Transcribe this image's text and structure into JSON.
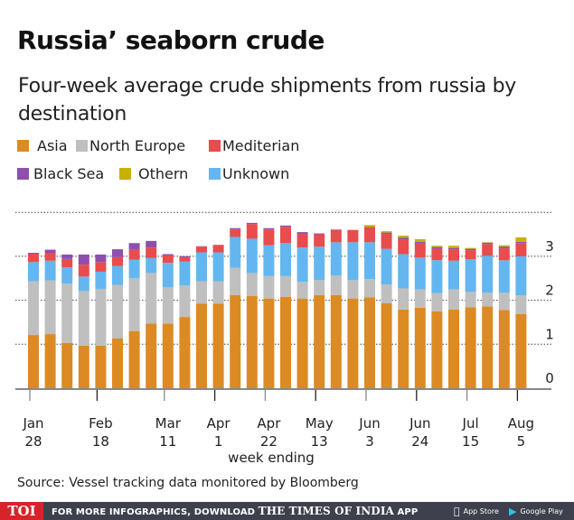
{
  "header": {
    "title": "Russia’ seaborn crude",
    "subtitle": "Four-week average crude shipments from russia by destination"
  },
  "legend": [
    {
      "label": "Asia",
      "color": "#dc8a23"
    },
    {
      "label": "North Europe",
      "color": "#bfbfbf"
    },
    {
      "label": "Mediterian",
      "color": "#e84c4c"
    },
    {
      "label": "Black Sea",
      "color": "#8e4fac"
    },
    {
      "label": "Othern",
      "color": "#c6b000"
    },
    {
      "label": "Unknown",
      "color": "#64b6f0"
    }
  ],
  "source": "Source: Vessel tracking data monitored by Bloomberg",
  "footer": {
    "logo": "TOI",
    "promo_prefix": "FOR MORE INFOGRAPHICS, DOWNLOAD",
    "promo_brand": "THE TIMES OF INDIA",
    "promo_suffix": "APP",
    "app_store": "App Store",
    "google_play": "Google Play"
  },
  "chart_data": {
    "type": "bar",
    "stacked": true,
    "title": "Russia’ seaborn crude",
    "subtitle": "Four-week average crude shipments from russia by destination",
    "xlabel": "week ending",
    "ylabel": "",
    "ylim": [
      0,
      4
    ],
    "yticks": [
      0,
      1,
      2,
      3
    ],
    "grid": true,
    "legend_position": "top-left",
    "axis_position": "right",
    "x_tick_labels": [
      {
        "line1": "Jan",
        "line2": "28",
        "bar_index": 0
      },
      {
        "line1": "Feb",
        "line2": "18",
        "bar_index": 4
      },
      {
        "line1": "Mar",
        "line2": "11",
        "bar_index": 8
      },
      {
        "line1": "Apr",
        "line2": "1",
        "bar_index": 11
      },
      {
        "line1": "Apr",
        "line2": "22",
        "bar_index": 14
      },
      {
        "line1": "May",
        "line2": "13",
        "bar_index": 17
      },
      {
        "line1": "Jun",
        "line2": "3",
        "bar_index": 20
      },
      {
        "line1": "Jun",
        "line2": "24",
        "bar_index": 23
      },
      {
        "line1": "Jul",
        "line2": "15",
        "bar_index": 26
      },
      {
        "line1": "Aug",
        "line2": "5",
        "bar_index": 29
      }
    ],
    "bar_count": 30,
    "series": [
      {
        "name": "Asia",
        "color": "#dc8a23",
        "values": [
          1.21,
          1.23,
          1.03,
          0.97,
          0.97,
          1.13,
          1.3,
          1.47,
          1.47,
          1.62,
          1.92,
          1.92,
          2.12,
          2.1,
          2.04,
          2.08,
          2.04,
          2.12,
          2.12,
          2.04,
          2.07,
          1.93,
          1.79,
          1.83,
          1.75,
          1.79,
          1.84,
          1.86,
          1.78,
          1.69
        ]
      },
      {
        "name": "North Europe",
        "color": "#bfbfbf",
        "values": [
          1.22,
          1.22,
          1.35,
          1.24,
          1.29,
          1.22,
          1.2,
          1.15,
          0.83,
          0.72,
          0.51,
          0.51,
          0.62,
          0.52,
          0.51,
          0.47,
          0.38,
          0.34,
          0.44,
          0.42,
          0.41,
          0.43,
          0.48,
          0.42,
          0.41,
          0.46,
          0.35,
          0.31,
          0.39,
          0.42
        ]
      },
      {
        "name": "Unknown",
        "color": "#64b6f0",
        "values": [
          0.44,
          0.45,
          0.37,
          0.33,
          0.39,
          0.43,
          0.42,
          0.34,
          0.55,
          0.54,
          0.66,
          0.66,
          0.7,
          0.78,
          0.7,
          0.75,
          0.78,
          0.76,
          0.76,
          0.86,
          0.84,
          0.81,
          0.78,
          0.72,
          0.75,
          0.65,
          0.74,
          0.84,
          0.74,
          0.89
        ]
      },
      {
        "name": "Mediterian",
        "color": "#e84c4c",
        "values": [
          0.19,
          0.18,
          0.19,
          0.27,
          0.22,
          0.2,
          0.23,
          0.24,
          0.17,
          0.09,
          0.13,
          0.17,
          0.17,
          0.33,
          0.36,
          0.37,
          0.31,
          0.28,
          0.28,
          0.28,
          0.35,
          0.34,
          0.33,
          0.32,
          0.26,
          0.26,
          0.21,
          0.27,
          0.27,
          0.3
        ]
      },
      {
        "name": "Black Sea",
        "color": "#8e4fac",
        "values": [
          0.02,
          0.07,
          0.1,
          0.23,
          0.17,
          0.18,
          0.15,
          0.15,
          0.03,
          0.03,
          0.01,
          0.0,
          0.03,
          0.03,
          0.03,
          0.03,
          0.04,
          0.02,
          0.01,
          0.0,
          0.0,
          0.03,
          0.04,
          0.04,
          0.04,
          0.03,
          0.03,
          0.03,
          0.04,
          0.03
        ]
      },
      {
        "name": "Othern",
        "color": "#c6b000",
        "values": [
          0,
          0,
          0,
          0,
          0,
          0,
          0,
          0,
          0,
          0,
          0,
          0,
          0,
          0,
          0,
          0,
          0,
          0,
          0,
          0,
          0.04,
          0.03,
          0.05,
          0.06,
          0.03,
          0.05,
          0.02,
          0.01,
          0.03,
          0.1
        ]
      }
    ]
  }
}
